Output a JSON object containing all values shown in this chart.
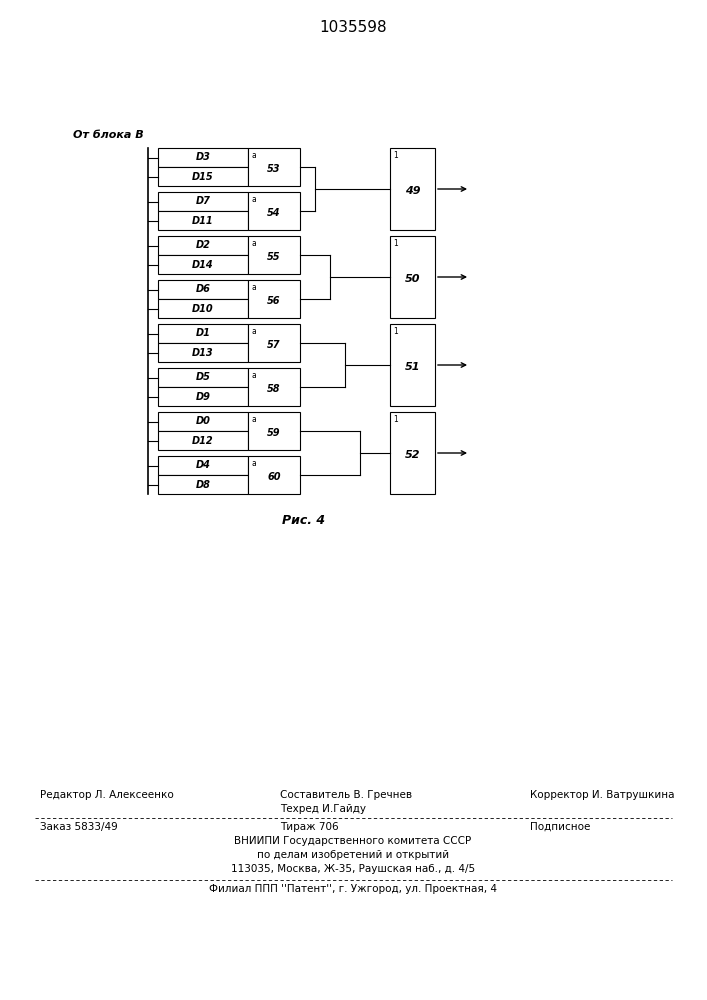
{
  "title": "1035598",
  "fig_bg": "#ffffff",
  "from_block_label": "От блока В",
  "fig_caption": "Рис. 4",
  "input_groups": [
    {
      "top_label": "D3",
      "bot_label": "D15",
      "box_label": "53"
    },
    {
      "top_label": "D7",
      "bot_label": "D11",
      "box_label": "54"
    },
    {
      "top_label": "D2",
      "bot_label": "D14",
      "box_label": "55"
    },
    {
      "top_label": "D6",
      "bot_label": "D10",
      "box_label": "56"
    },
    {
      "top_label": "D1",
      "bot_label": "D13",
      "box_label": "57"
    },
    {
      "top_label": "D5",
      "bot_label": "D9",
      "box_label": "58"
    },
    {
      "top_label": "D0",
      "bot_label": "D12",
      "box_label": "59"
    },
    {
      "top_label": "D4",
      "bot_label": "D8",
      "box_label": "60"
    }
  ],
  "output_boxes": [
    "49",
    "50",
    "51",
    "52"
  ],
  "footer": {
    "line1_left": "Редактор Л. Алексеенко",
    "line1_center": "Составитель В. Гречнев",
    "line1_center2": "Техред И.Гайду",
    "line1_right": "Корректор И. Ватрушкина",
    "line2_left": "Заказ 5833/49",
    "line2_center": "Тираж 706",
    "line2_right": "Подписное",
    "line3": "ВНИИПИ Государственного комитета СССР",
    "line4": "по делам изобретений и открытий",
    "line5": "113035, Москва, Ж-35, Раушская наб., д. 4/5",
    "line6": "Филиал ППП ''Патент'', г. Ужгород, ул. Проектная, 4"
  }
}
